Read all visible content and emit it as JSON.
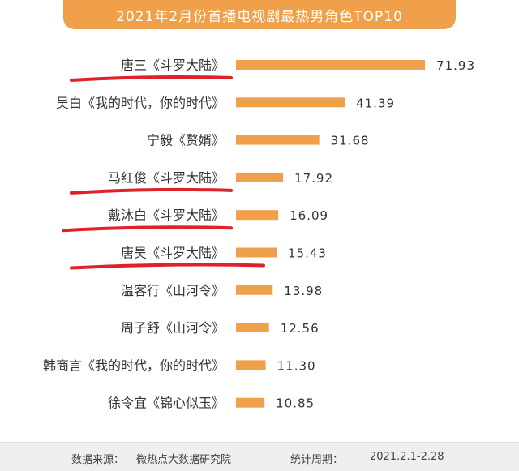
{
  "header": {
    "title": "2021年2月份首播电视剧最热男角色TOP10"
  },
  "footer": {
    "source_label": "数据来源：",
    "source": "微热点大数据研究院",
    "period_label": "统计周期：",
    "period": "2021.2.1-2.28"
  },
  "colors": {
    "bar": "#f0a04a",
    "title_bg": "#f0a04a",
    "annotation": "#e0202a"
  },
  "chart_data": {
    "type": "bar",
    "orientation": "horizontal",
    "title": "2021年2月份首播电视剧最热男角色TOP10",
    "categories": [
      "唐三《斗罗大陆》",
      "吴白《我的时代，你的时代》",
      "宁毅《赘婿》",
      "马红俊《斗罗大陆》",
      "戴沐白《斗罗大陆》",
      "唐昊《斗罗大陆》",
      "温客行《山河令》",
      "周子舒《山河令》",
      "韩商言《我的时代，你的时代》",
      "徐令宜《锦心似玉》"
    ],
    "values": [
      71.93,
      41.39,
      31.68,
      17.92,
      16.09,
      15.43,
      13.98,
      12.56,
      11.3,
      10.85
    ],
    "value_labels": [
      "71.93",
      "41.39",
      "31.68",
      "17.92",
      "16.09",
      "15.43",
      "13.98",
      "12.56",
      "11.30",
      "10.85"
    ],
    "xlabel": "",
    "ylabel": "",
    "xlim": [
      0,
      80
    ],
    "grid": false,
    "legend": "none",
    "annotations": {
      "type": "hand-drawn red underline",
      "underlined_categories": [
        "唐三《斗罗大陆》",
        "马红俊《斗罗大陆》",
        "戴沐白《斗罗大陆》",
        "唐昊《斗罗大陆》"
      ]
    }
  }
}
